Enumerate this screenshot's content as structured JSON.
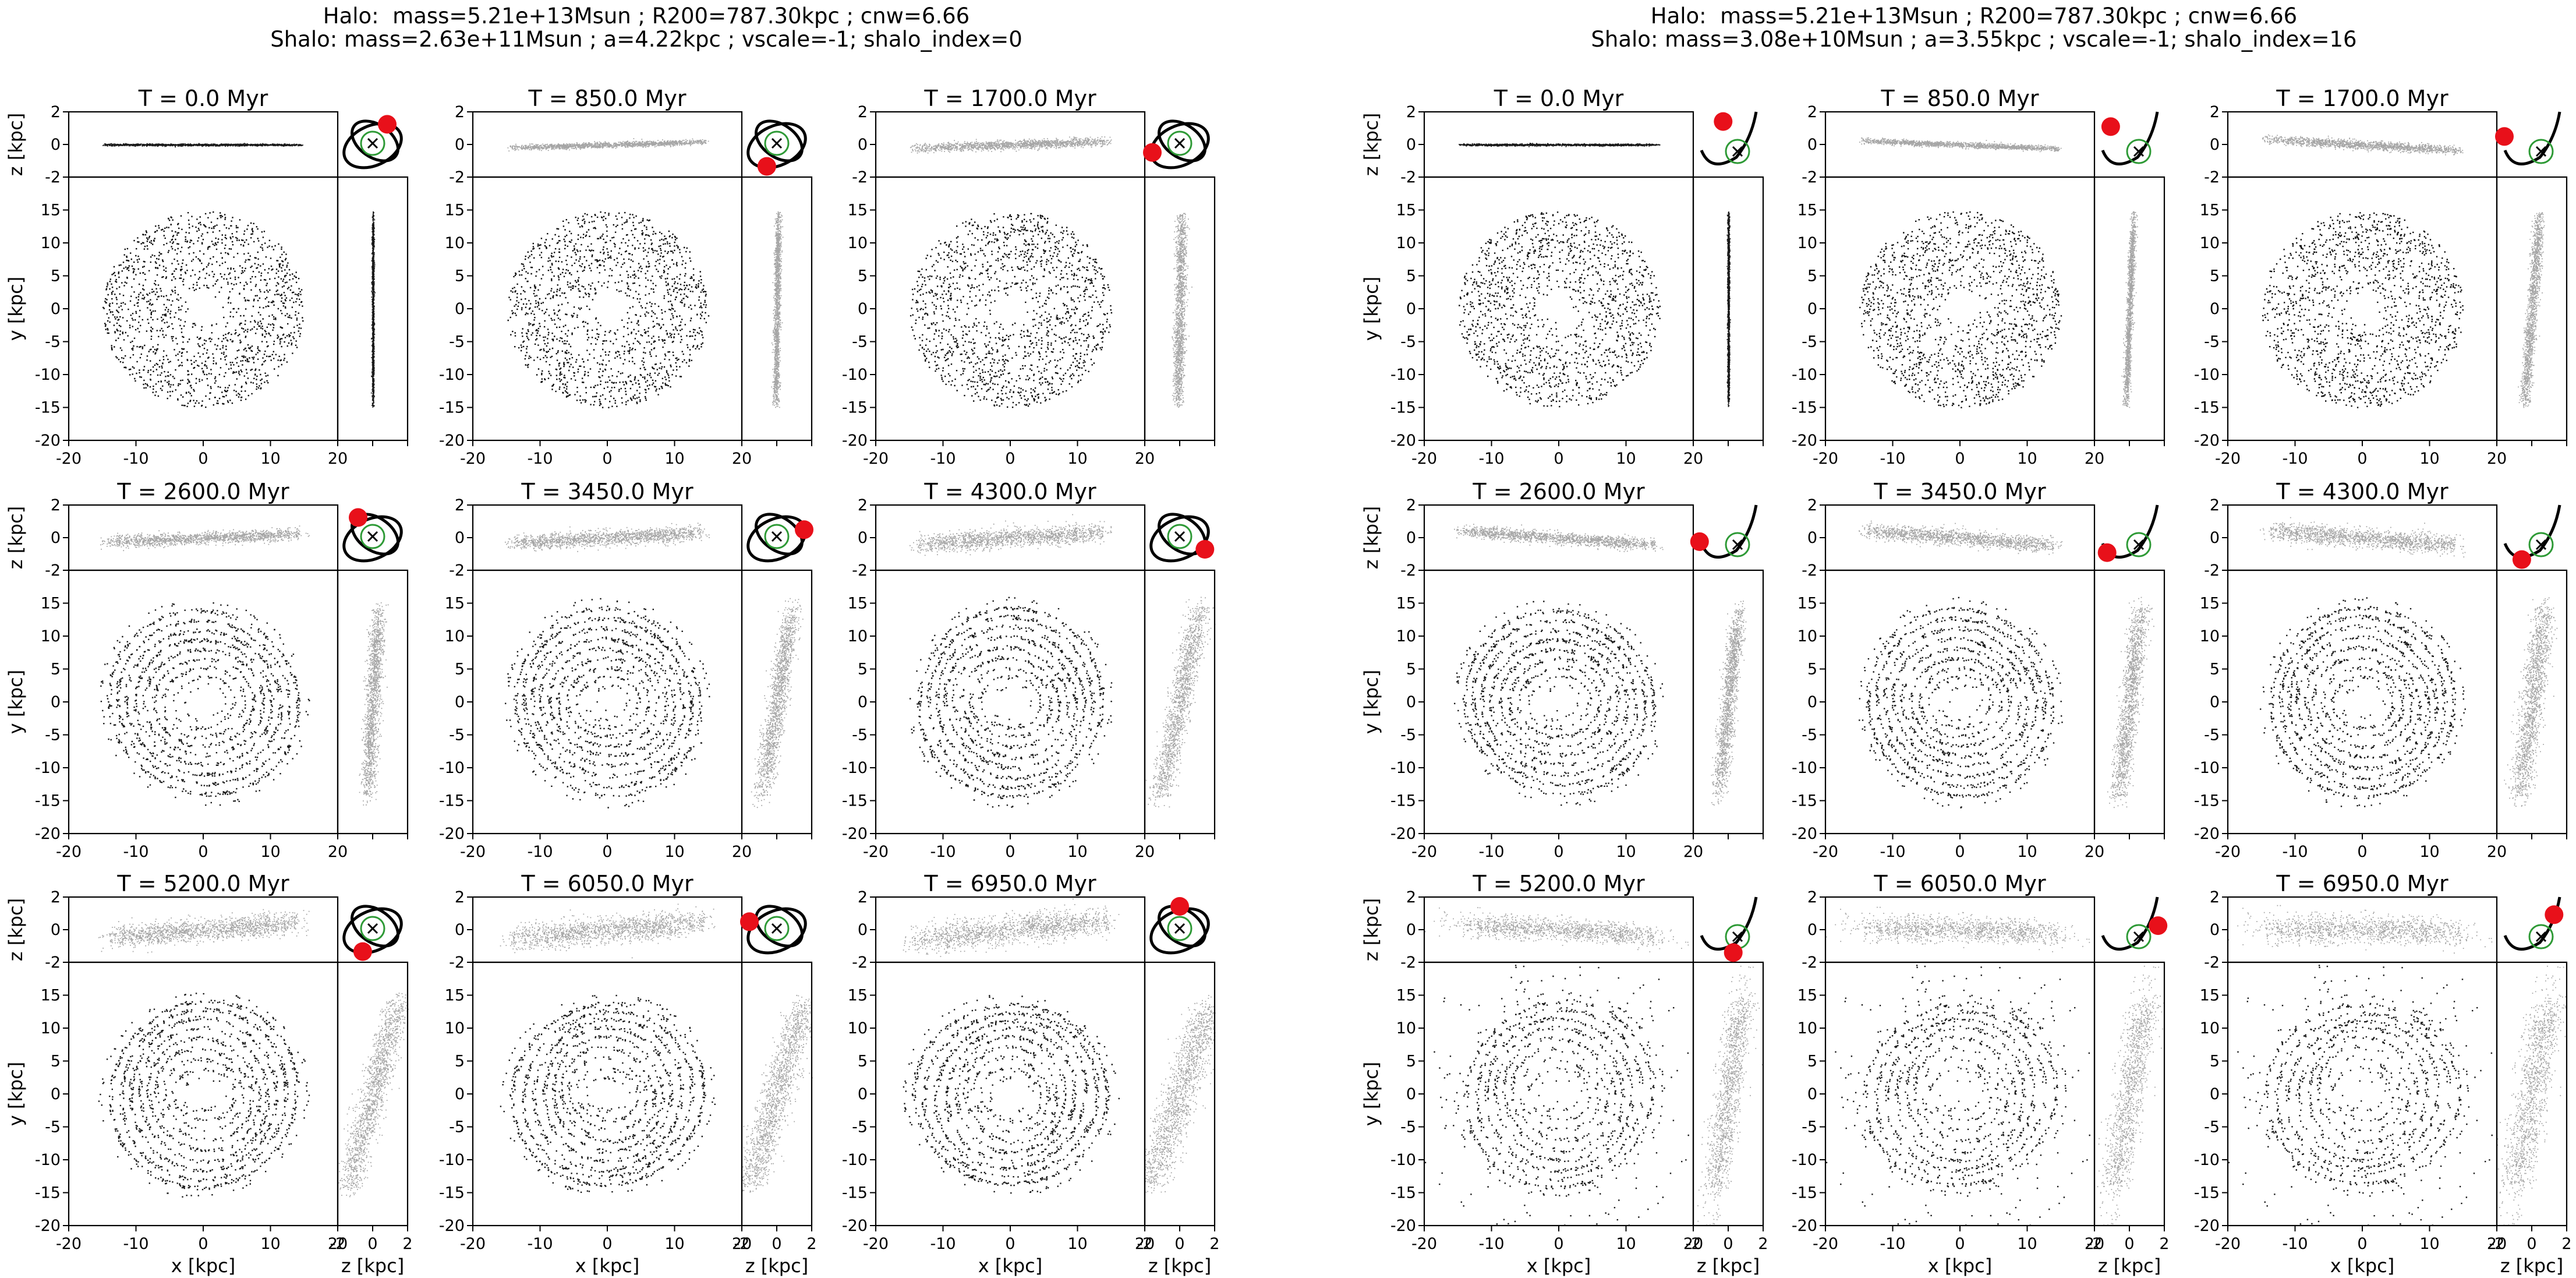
{
  "chart_data": {
    "type": "scatter",
    "figure_titles": [
      [
        "Halo:  mass=5.21e+13Msun ; R200=787.30kpc ; cnw=6.66",
        "Shalo: mass=2.63e+11Msun ; a=4.22kpc ; vscale=-1; shalo_index=0"
      ],
      [
        "Halo:  mass=5.21e+13Msun ; R200=787.30kpc ; cnw=6.66",
        "Shalo: mass=3.08e+10Msun ; a=3.55kpc ; vscale=-1; shalo_index=16"
      ]
    ],
    "axis_labels": {
      "x": "x [kpc]",
      "y": "y [kpc]",
      "z": "z [kpc]"
    },
    "axes": {
      "face_on": {
        "xlim": [
          -20,
          20
        ],
        "ylim": [
          -20,
          20
        ],
        "xticks": [
          -20,
          -10,
          0,
          10,
          20
        ],
        "yticks": [
          -20,
          -15,
          -10,
          -5,
          0,
          5,
          10,
          15
        ]
      },
      "edge_on": {
        "xlim": [
          -20,
          20
        ],
        "ylim": [
          -2,
          2
        ],
        "yticks": [
          -2,
          0,
          2
        ]
      },
      "side_on": {
        "xlim": [
          -2,
          2
        ],
        "ylim": [
          -20,
          20
        ],
        "xticks": [
          -2,
          0,
          2
        ]
      }
    },
    "grid": false,
    "disk": {
      "inner_radius_kpc": 2,
      "outer_radius_kpc": 15
    },
    "snapshot_prefix": "T = ",
    "snapshot_unit": " Myr",
    "snapshots": [
      "0.0",
      "850.0",
      "1700.0",
      "2600.0",
      "3450.0",
      "4300.0",
      "5200.0",
      "6050.0",
      "6950.0"
    ],
    "panels": [
      {
        "name": "shalo_index=0",
        "disk_tilt": [
          0.0,
          0.1,
          0.12,
          0.14,
          0.2,
          0.22,
          0.26,
          0.3,
          0.34
        ],
        "side_lean": [
          0.0,
          0.05,
          0.08,
          0.22,
          0.6,
          0.8,
          1.0,
          1.1,
          1.2
        ],
        "satellite_phase_deg": [
          60,
          250,
          200,
          120,
          20,
          330,
          250,
          160,
          90
        ]
      },
      {
        "name": "shalo_index=16",
        "disk_tilt": [
          0.0,
          -0.14,
          -0.2,
          -0.24,
          -0.26,
          -0.26,
          -0.2,
          -0.1,
          -0.06
        ],
        "side_lean": [
          0.0,
          0.15,
          0.3,
          0.4,
          0.45,
          0.5,
          0.55,
          0.65,
          0.7
        ],
        "satellite_phase_deg": [
          100,
          130,
          160,
          190,
          220,
          250,
          280,
          10,
          40
        ]
      }
    ],
    "colors": {
      "stars": "#000000",
      "satellite": "#e8101a",
      "orbit": "#000000",
      "host_circle": "#2e9a36"
    }
  }
}
